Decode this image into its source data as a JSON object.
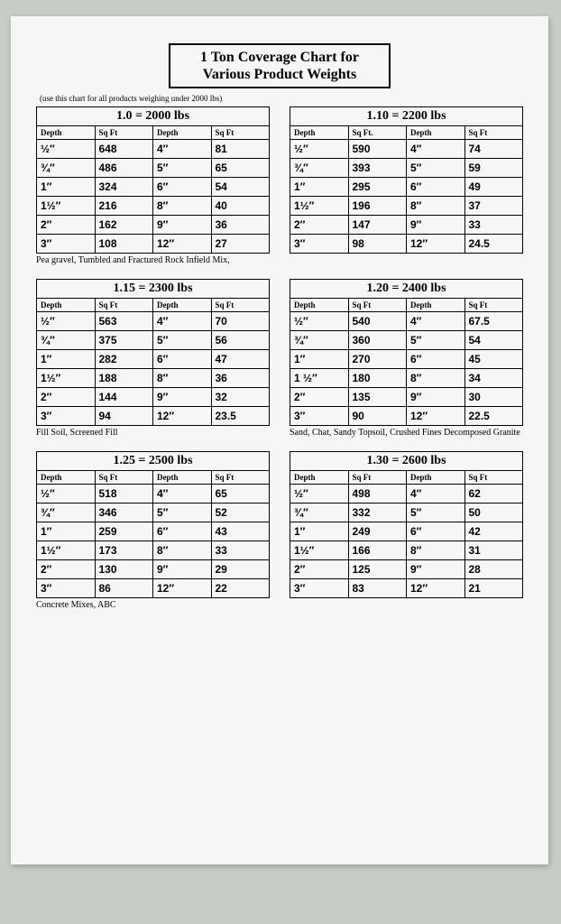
{
  "title_line1": "1 Ton Coverage Chart for",
  "title_line2": "Various Product Weights",
  "subtitle": "(use this chart for all products weighing under 2000 lbs)",
  "headers": {
    "depth": "Depth",
    "sqft": "Sq Ft",
    "sqft_alt": "Sq Ft."
  },
  "tables": [
    {
      "title": "1.0 = 2000 lbs",
      "caption": "Pea gravel, Tumbled and Fractured Rock Infield Mix,",
      "rows": [
        [
          "½″",
          "648",
          "4″",
          "81"
        ],
        [
          "¾″",
          "486",
          "5″",
          "65"
        ],
        [
          "1″",
          "324",
          "6″",
          "54"
        ],
        [
          "1½″",
          "216",
          "8″",
          "40"
        ],
        [
          "2″",
          "162",
          "9″",
          "36"
        ],
        [
          "3″",
          "108",
          "12″",
          "27"
        ]
      ]
    },
    {
      "title": "1.10 = 2200 lbs",
      "caption": "",
      "rows": [
        [
          "½″",
          "590",
          "4″",
          "74"
        ],
        [
          "¾″",
          "393",
          "5″",
          "59"
        ],
        [
          "1″",
          "295",
          "6″",
          "49"
        ],
        [
          "1½″",
          "196",
          "8″",
          "37"
        ],
        [
          "2″",
          "147",
          "9″",
          "33"
        ],
        [
          "3″",
          "98",
          "12″",
          "24.5"
        ]
      ]
    },
    {
      "title": "1.15 = 2300 lbs",
      "caption": "Fill Soil, Screened Fill",
      "rows": [
        [
          "½″",
          "563",
          "4″",
          "70"
        ],
        [
          "¾″",
          "375",
          "5″",
          "56"
        ],
        [
          "1″",
          "282",
          "6″",
          "47"
        ],
        [
          "1½″",
          "188",
          "8″",
          "36"
        ],
        [
          "2″",
          "144",
          "9″",
          "32"
        ],
        [
          "3″",
          "94",
          "12″",
          "23.5"
        ]
      ]
    },
    {
      "title": "1.20 = 2400 lbs",
      "caption": "Sand, Chat, Sandy Topsoil, Crushed Fines Decomposed Granite",
      "rows": [
        [
          "½″",
          "540",
          "4″",
          "67.5"
        ],
        [
          "¾″",
          "360",
          "5″",
          "54"
        ],
        [
          "1″",
          "270",
          "6″",
          "45"
        ],
        [
          "1 ½″",
          "180",
          "8″",
          "34"
        ],
        [
          "2″",
          "135",
          "9″",
          "30"
        ],
        [
          "3″",
          "90",
          "12″",
          "22.5"
        ]
      ]
    },
    {
      "title": "1.25 = 2500 lbs",
      "caption": "Concrete Mixes, ABC",
      "rows": [
        [
          "½″",
          "518",
          "4″",
          "65"
        ],
        [
          "¾″",
          "346",
          "5″",
          "52"
        ],
        [
          "1″",
          "259",
          "6″",
          "43"
        ],
        [
          "1½″",
          "173",
          "8″",
          "33"
        ],
        [
          "2″",
          "130",
          "9″",
          "29"
        ],
        [
          "3″",
          "86",
          "12″",
          "22"
        ]
      ]
    },
    {
      "title": "1.30 = 2600 lbs",
      "caption": "",
      "rows": [
        [
          "½″",
          "498",
          "4″",
          "62"
        ],
        [
          "¾″",
          "332",
          "5″",
          "50"
        ],
        [
          "1″",
          "249",
          "6″",
          "42"
        ],
        [
          "1½″",
          "166",
          "8″",
          "31"
        ],
        [
          "2″",
          "125",
          "9″",
          "28"
        ],
        [
          "3″",
          "83",
          "12″",
          "21"
        ]
      ]
    }
  ]
}
